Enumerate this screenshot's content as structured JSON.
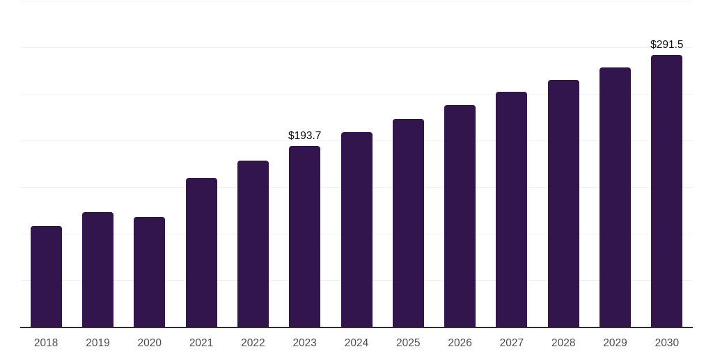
{
  "chart_data": {
    "type": "bar",
    "title": "",
    "xlabel": "",
    "ylabel": "",
    "categories": [
      "2018",
      "2019",
      "2020",
      "2021",
      "2022",
      "2023",
      "2024",
      "2025",
      "2026",
      "2027",
      "2028",
      "2029",
      "2030"
    ],
    "values": [
      108.7,
      123.6,
      118.4,
      160.1,
      178.0,
      193.7,
      208.6,
      223.4,
      237.6,
      252.4,
      265.1,
      278.5,
      291.5
    ],
    "data_labels": [
      {
        "index": 5,
        "text": "$193.7"
      },
      {
        "index": 12,
        "text": "$291.5"
      }
    ],
    "ylim": [
      0,
      350
    ],
    "gridline_step": 50,
    "grid": "horizontal",
    "legend": "none",
    "colors": {
      "bar": "#33154d",
      "gridline": "#f2f2f2",
      "axis_line": "#2e2e2e",
      "tick_label": "#4d4d4d",
      "data_label": "#0d0d0d",
      "background": "#ffffff"
    }
  }
}
